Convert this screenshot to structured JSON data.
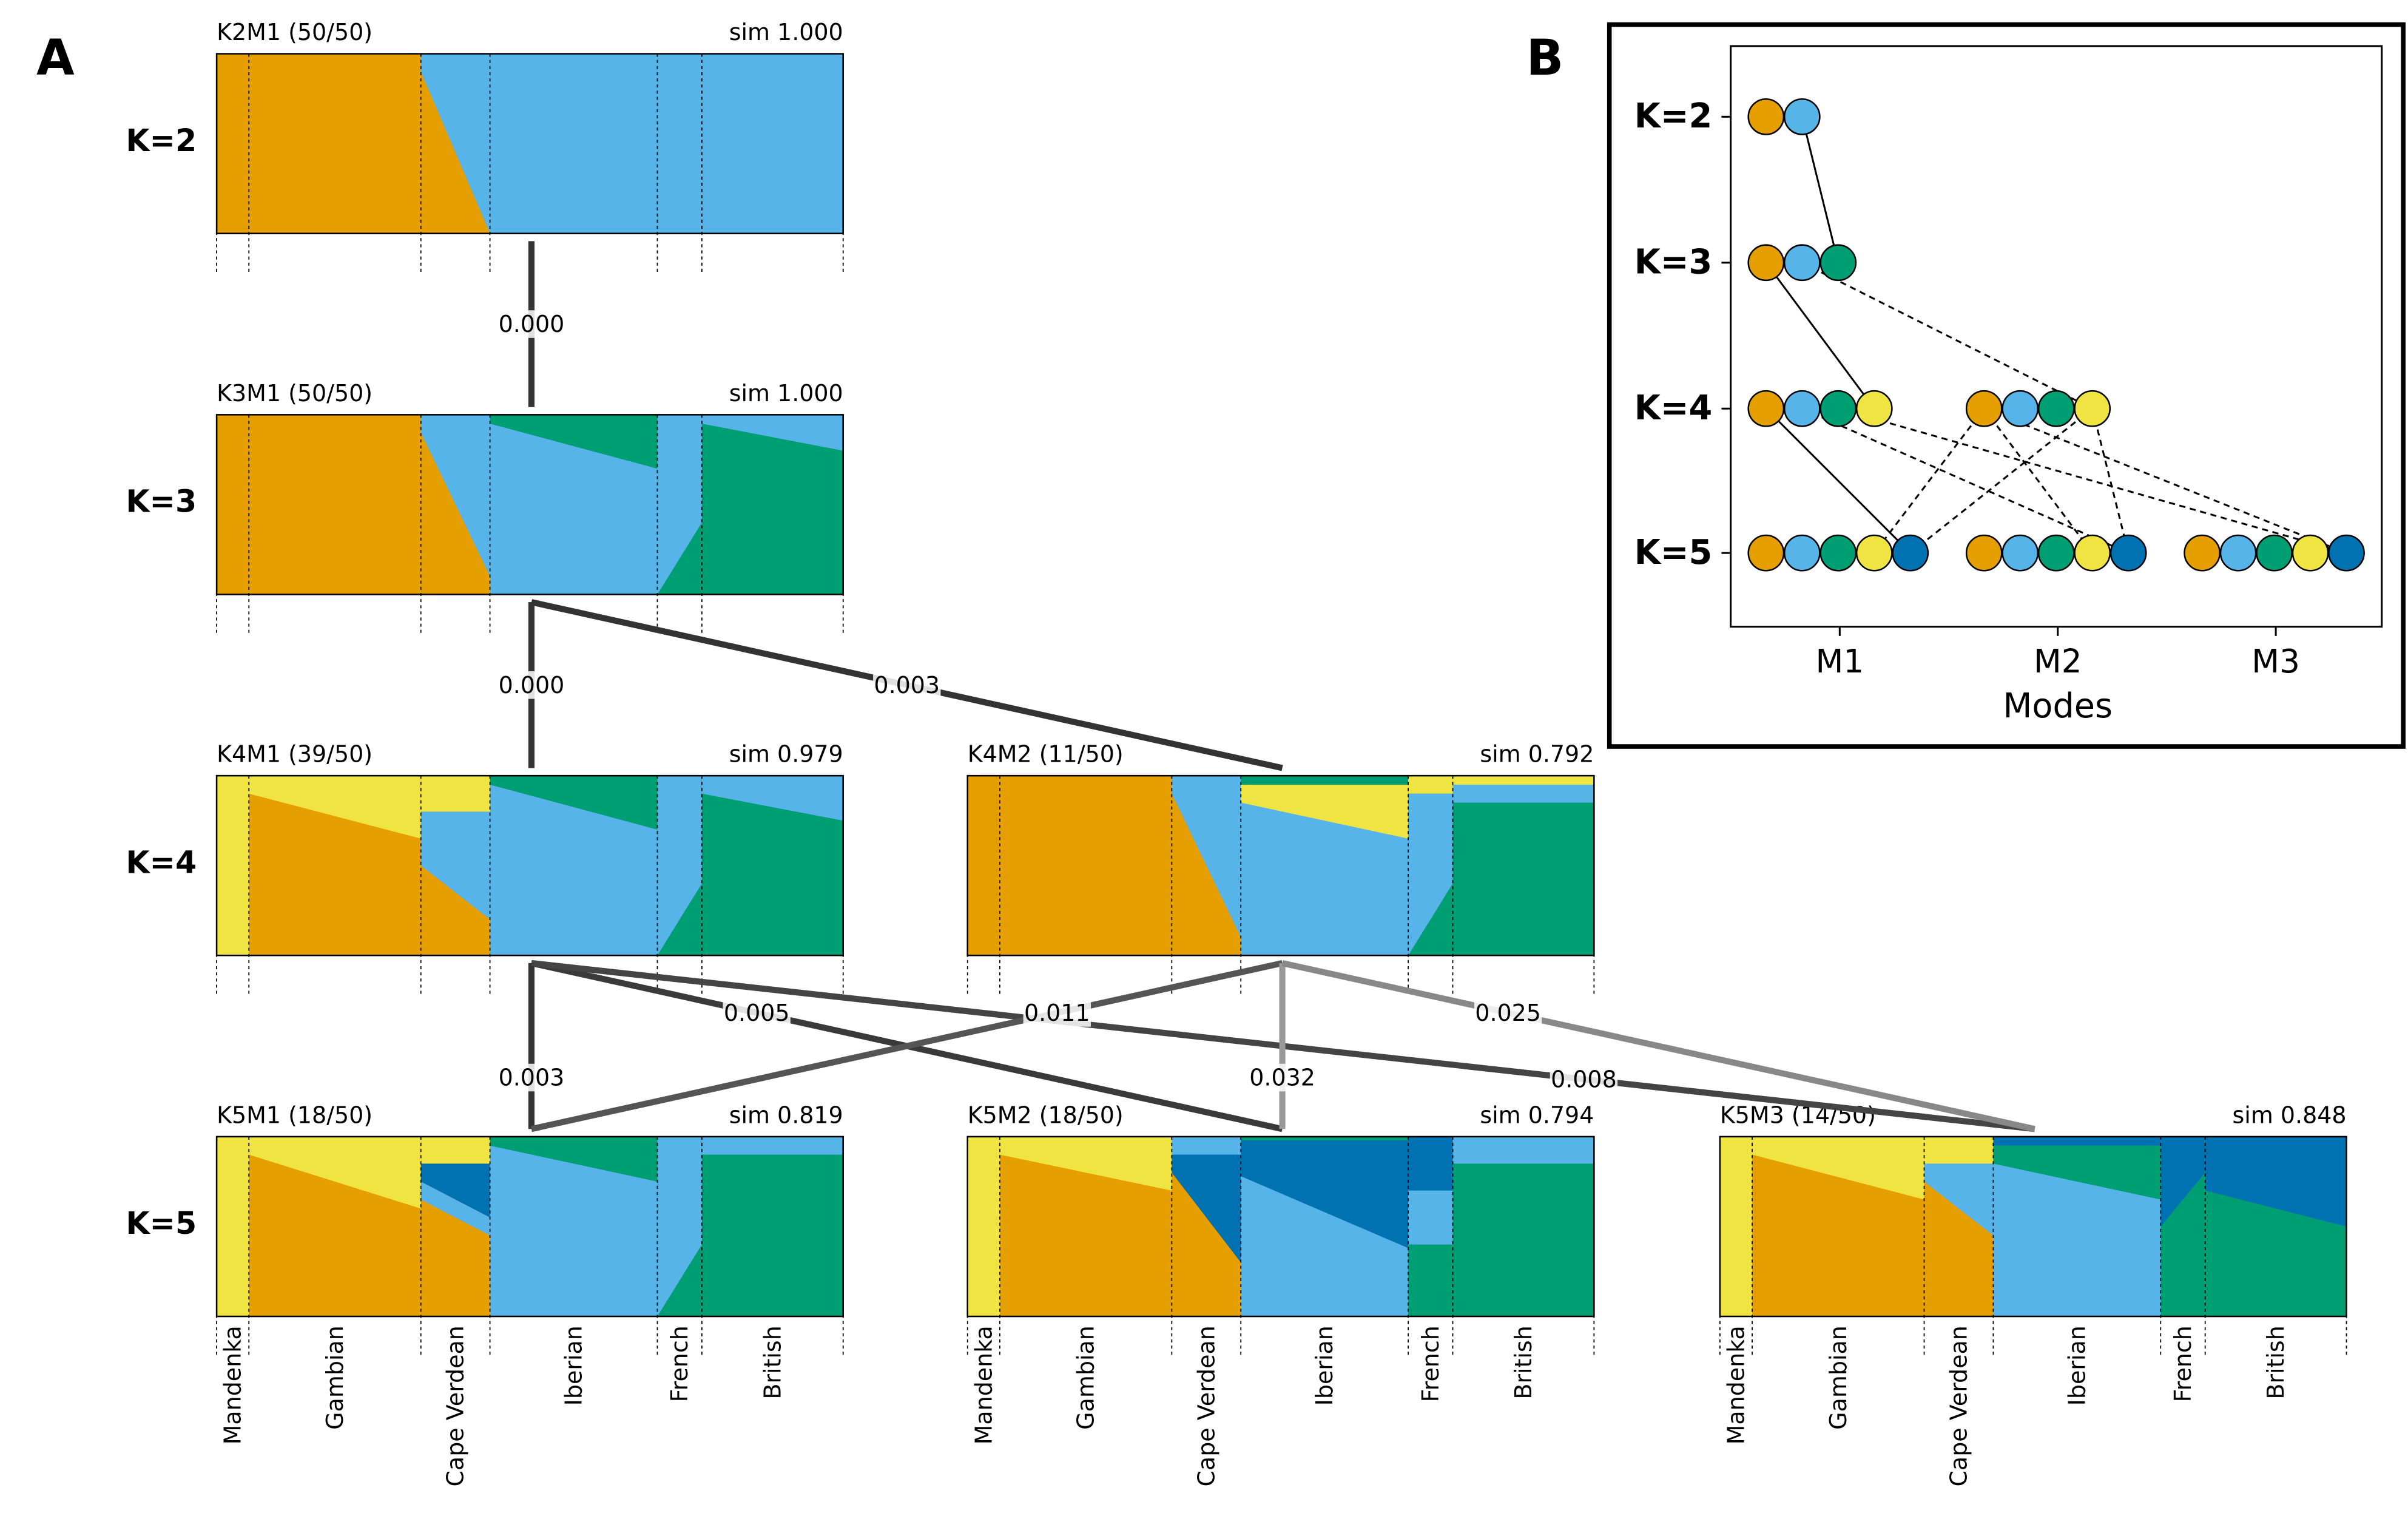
{
  "panel_a": {
    "label": "A",
    "rows": [
      {
        "label": "K=2",
        "modes": [
          {
            "title": "K2M1 (50/50)",
            "sim": "sim 1.000"
          }
        ]
      },
      {
        "label": "K=3",
        "modes": [
          {
            "title": "K3M1 (50/50)",
            "sim": "sim 1.000"
          }
        ]
      },
      {
        "label": "K=4",
        "modes": [
          {
            "title": "K4M1 (39/50)",
            "sim": "sim 0.979"
          },
          {
            "title": "K4M2 (11/50)",
            "sim": "sim 0.792"
          }
        ]
      },
      {
        "label": "K=5",
        "modes": [
          {
            "title": "K5M1 (18/50)",
            "sim": "sim 0.819"
          },
          {
            "title": "K5M2 (18/50)",
            "sim": "sim 0.794"
          },
          {
            "title": "K5M3 (14/50)",
            "sim": "sim 0.848"
          }
        ]
      }
    ],
    "edges": [
      {
        "label": "0.000"
      },
      {
        "label": "0.000"
      },
      {
        "label": "0.003"
      },
      {
        "label": "0.003"
      },
      {
        "label": "0.005"
      },
      {
        "label": "0.008"
      },
      {
        "label": "0.011"
      },
      {
        "label": "0.032"
      },
      {
        "label": "0.025"
      }
    ],
    "populations": [
      "Mandenka",
      "Gambian",
      "Cape Verdean",
      "Iberian",
      "French",
      "British"
    ]
  },
  "panel_b": {
    "label": "B",
    "y_labels": [
      "K=2",
      "K=3",
      "K=4",
      "K=5"
    ],
    "x_labels": [
      "M1",
      "M2",
      "M3"
    ],
    "x_axis_label": "Modes"
  }
}
